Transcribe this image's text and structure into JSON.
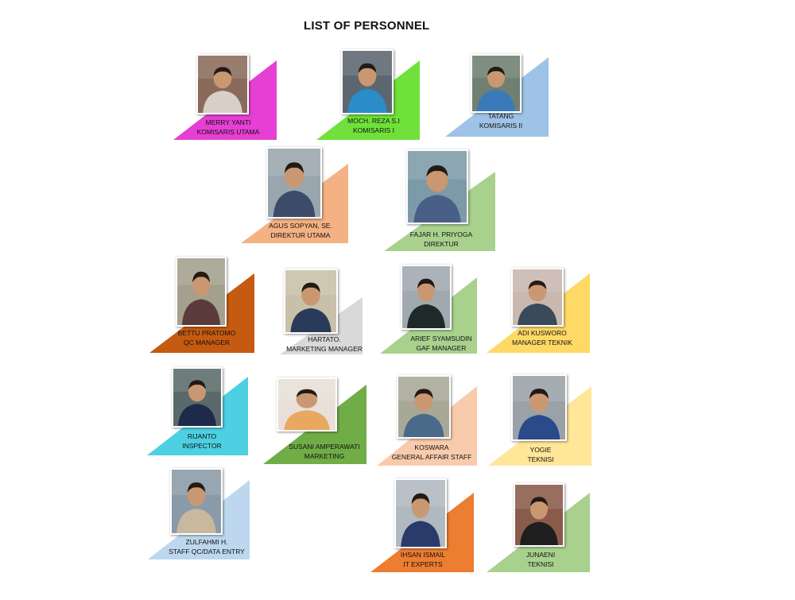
{
  "title": "LIST OF PERSONNEL",
  "personnel": [
    {
      "name": "MERRY YANTI",
      "role": "KOMISARIS UTAMA",
      "color": "#e63fd3",
      "photo_bg": "#8a6a5a",
      "shirt": "#d8d0c8"
    },
    {
      "name": "MOCH. REZA S.I",
      "role": "KOMISARIS I",
      "color": "#6fe13a",
      "photo_bg": "#5c6670",
      "shirt": "#2a8cc8"
    },
    {
      "name": "TATANG",
      "role": "KOMISARIS II",
      "color": "#9ec3e6",
      "photo_bg": "#6f7f70",
      "shirt": "#3a7ab8"
    },
    {
      "name": "AGUS SOPYAN, SE.",
      "role": "DIREKTUR UTAMA",
      "color": "#f4b183",
      "photo_bg": "#9aa6ad",
      "shirt": "#3c4b6a"
    },
    {
      "name": "FAJAR H. PRIYOGA",
      "role": "DIREKTUR",
      "color": "#a9d18e",
      "photo_bg": "#7d9aa8",
      "shirt": "#4a5f88"
    },
    {
      "name": "BETTU PRATOMO",
      "role": "QC MANAGER",
      "color": "#c55a11",
      "photo_bg": "#a3a08e",
      "shirt": "#5a3a3a"
    },
    {
      "name": "HARTATO.",
      "role": "MARKETING MANAGER",
      "color": "#d9d9d9",
      "photo_bg": "#c8c0a8",
      "shirt": "#2a3a5a"
    },
    {
      "name": "ARIEF SYAMSUDIN",
      "role": "GAF MANAGER",
      "color": "#a9d18e",
      "photo_bg": "#a0a8b0",
      "shirt": "#1e2a2a"
    },
    {
      "name": "ADI KUSWORO",
      "role": "MANAGER TEKNIK",
      "color": "#ffd966",
      "photo_bg": "#c8b8b0",
      "shirt": "#3a4a5a"
    },
    {
      "name": "RIJANTO",
      "role": "INSPECTOR",
      "color": "#4dd0e1",
      "photo_bg": "#5a6a6a",
      "shirt": "#1e2a4a"
    },
    {
      "name": "SUSANI AMPERAWATI",
      "role": "MARKETING",
      "color": "#70ad47",
      "photo_bg": "#e8e0d8",
      "shirt": "#e8a860"
    },
    {
      "name": "KOSWARA",
      "role": "GENERAL AFFAIR STAFF",
      "color": "#f8cbad",
      "photo_bg": "#a8a898",
      "shirt": "#4a6a8a"
    },
    {
      "name": "YOGIE",
      "role": "TEKNISI",
      "color": "#ffe699",
      "photo_bg": "#9aa2a8",
      "shirt": "#2a4a8a"
    },
    {
      "name": "ZULFAHMI H.",
      "role": "STAFF QC/DATA ENTRY",
      "color": "#bdd7ee",
      "photo_bg": "#8a9aa8",
      "shirt": "#c8b8a0"
    },
    {
      "name": "IHSAN ISMAIL",
      "role": "IT EXPERTS",
      "color": "#ed7d31",
      "photo_bg": "#b0b8c0",
      "shirt": "#2a3a6a"
    },
    {
      "name": "JUNAENI",
      "role": "TEKNISI",
      "color": "#a9d18e",
      "photo_bg": "#8a5a4a",
      "shirt": "#1e1e1e"
    }
  ]
}
